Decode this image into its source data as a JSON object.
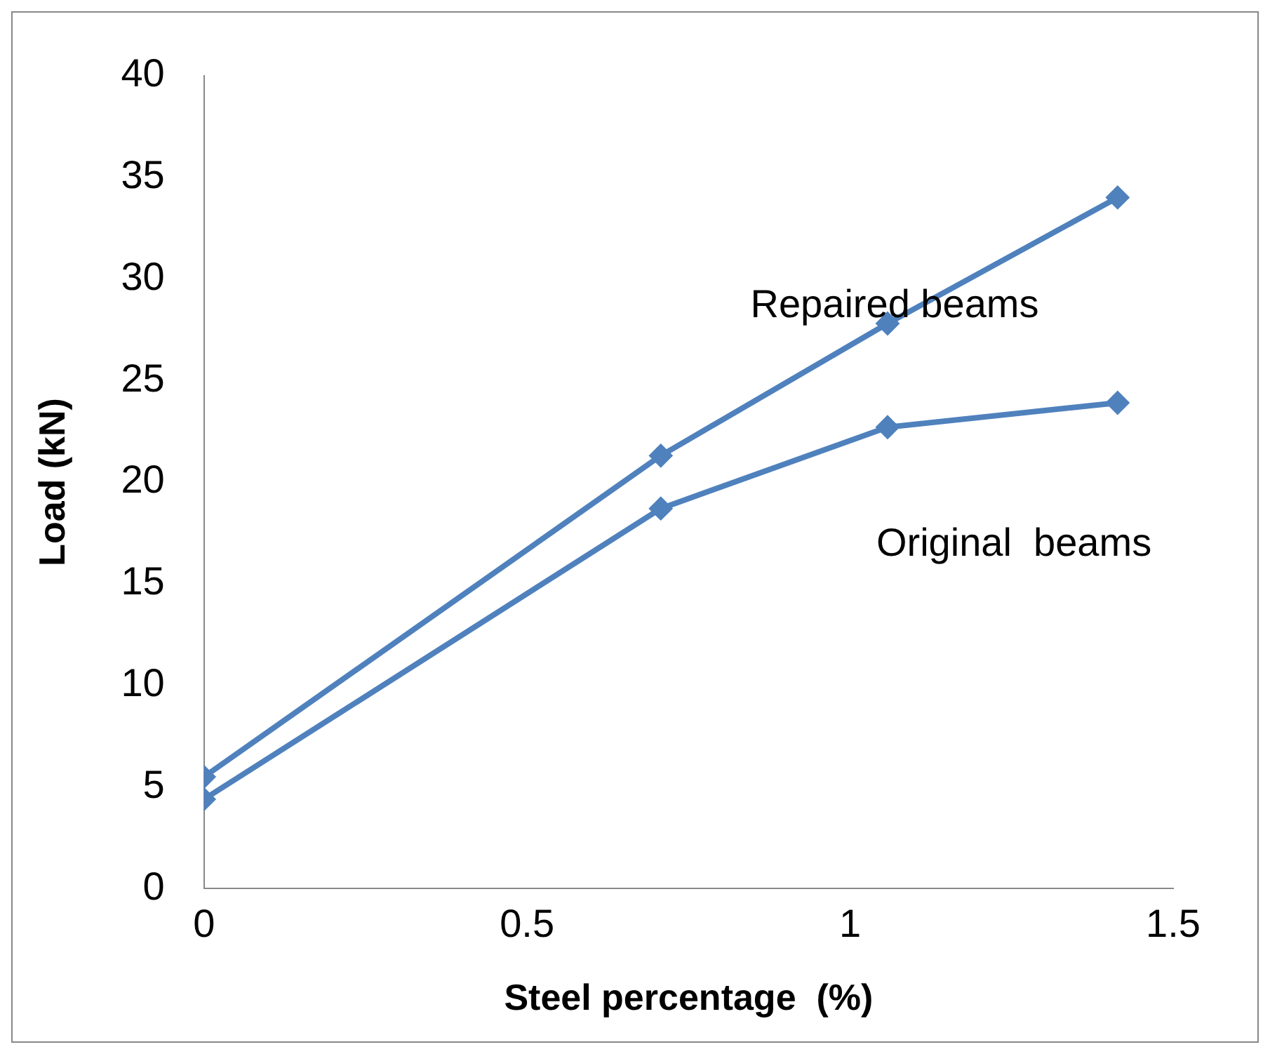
{
  "chart_data": {
    "type": "line",
    "xlabel": "Steel percentage  (%)",
    "ylabel": "Load (kN)",
    "xlim": [
      0,
      1.5
    ],
    "xticks": [
      0,
      0.5,
      1,
      1.5
    ],
    "ylim": [
      0,
      40
    ],
    "yticks": [
      0,
      5,
      10,
      15,
      20,
      25,
      30,
      35,
      40
    ],
    "grid": false,
    "legend": false,
    "marker": "diamond",
    "line_style": "solid",
    "series": [
      {
        "name": "Repaired beams",
        "color": "#4f81bd",
        "x": [
          0,
          0.707,
          1.058,
          1.414
        ],
        "values": [
          5.5,
          21.3,
          27.8,
          34
        ]
      },
      {
        "name": "Original  beams",
        "color": "#4f81bd",
        "x": [
          0,
          0.707,
          1.058,
          1.414
        ],
        "values": [
          4.4,
          18.7,
          22.7,
          23.9
        ]
      }
    ]
  }
}
